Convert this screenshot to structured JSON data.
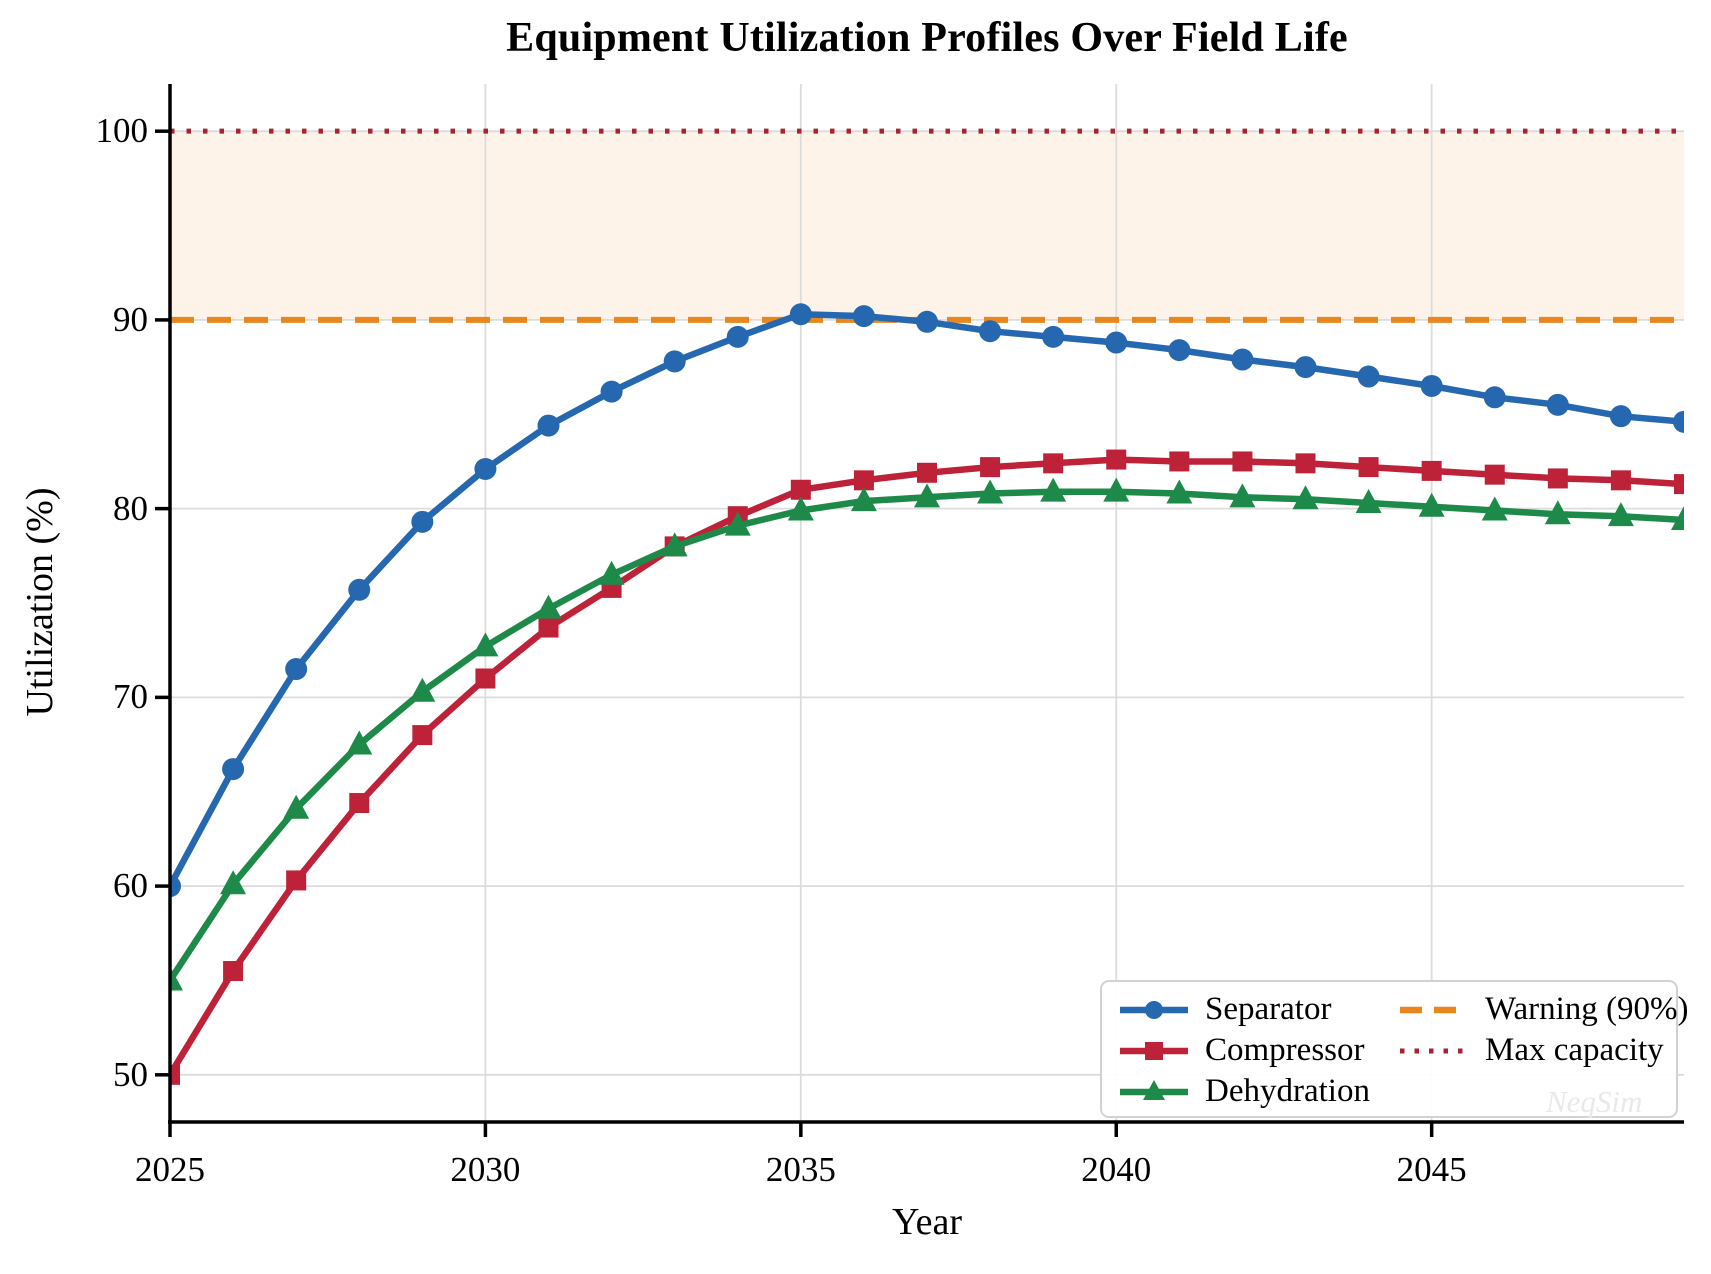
{
  "chart_data": {
    "type": "line",
    "title": "Equipment Utilization Profiles Over Field Life",
    "xlabel": "Year",
    "ylabel": "Utilization (%)",
    "x": [
      2025,
      2026,
      2027,
      2028,
      2029,
      2030,
      2031,
      2032,
      2033,
      2034,
      2035,
      2036,
      2037,
      2038,
      2039,
      2040,
      2041,
      2042,
      2043,
      2044,
      2045,
      2046,
      2047,
      2048,
      2049
    ],
    "xlim": [
      2025,
      2049
    ],
    "ylim": [
      47.5,
      102.5
    ],
    "xticks": [
      2025,
      2030,
      2035,
      2040,
      2045
    ],
    "yticks": [
      50,
      60,
      70,
      80,
      90,
      100
    ],
    "grid": true,
    "legend_position": "lower right",
    "series": [
      {
        "name": "Separator",
        "color": "#2668b0",
        "marker": "circle",
        "values": [
          60.0,
          66.2,
          71.5,
          75.7,
          79.3,
          82.1,
          84.4,
          86.2,
          87.8,
          89.1,
          90.3,
          90.2,
          89.9,
          89.4,
          89.1,
          88.8,
          88.4,
          87.9,
          87.5,
          87.0,
          86.5,
          85.9,
          85.5,
          84.9,
          84.6
        ]
      },
      {
        "name": "Compressor",
        "color": "#be2239",
        "marker": "square",
        "values": [
          50.0,
          55.5,
          60.3,
          64.4,
          68.0,
          71.0,
          73.7,
          75.8,
          78.0,
          79.6,
          81.0,
          81.5,
          81.9,
          82.2,
          82.4,
          82.6,
          82.5,
          82.5,
          82.4,
          82.2,
          82.0,
          81.8,
          81.6,
          81.5,
          81.3
        ]
      },
      {
        "name": "Dehydration",
        "color": "#1e8a4a",
        "marker": "triangle",
        "values": [
          55.0,
          60.1,
          64.1,
          67.5,
          70.3,
          72.7,
          74.7,
          76.5,
          78.0,
          79.1,
          79.9,
          80.4,
          80.6,
          80.8,
          80.9,
          80.9,
          80.8,
          80.6,
          80.5,
          80.3,
          80.1,
          79.9,
          79.7,
          79.6,
          79.4
        ]
      }
    ],
    "reference_lines": [
      {
        "name": "Warning (90%)",
        "y": 90,
        "color": "#e8871d",
        "style": "dashed"
      },
      {
        "name": "Max capacity",
        "y": 100,
        "color": "#a82331",
        "style": "dotted"
      }
    ],
    "shaded_band": {
      "from": 90,
      "to": 100,
      "color": "#fdf3e8"
    },
    "watermark": "NeqSim"
  },
  "colors": {
    "grid": "#dcdcdc",
    "spine": "#000000",
    "legend_border": "#d2d2d2",
    "watermark": "#e9e9e9"
  }
}
